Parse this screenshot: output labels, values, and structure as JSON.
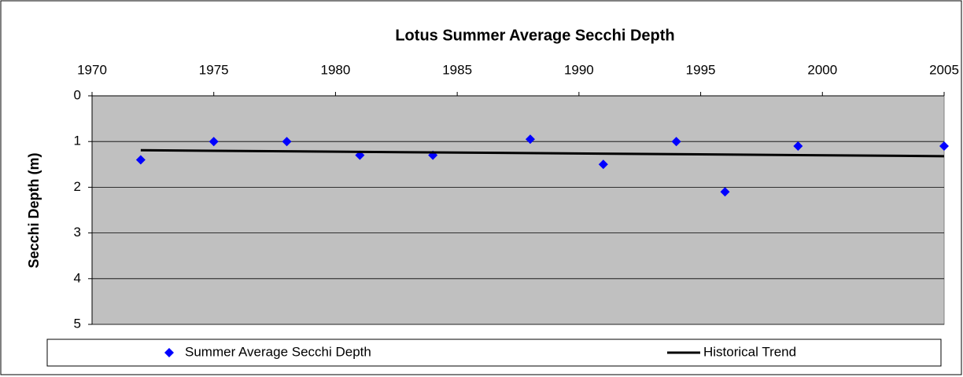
{
  "chart_data": {
    "type": "scatter",
    "title": "Lotus Summer Average Secchi Depth",
    "y_label": "Secchi Depth (m)",
    "xlim": [
      1970,
      2005
    ],
    "xticks": [
      1970,
      1975,
      1980,
      1985,
      1990,
      1995,
      2000,
      2005
    ],
    "x_axis_position": "top",
    "ylim": [
      0,
      5
    ],
    "yticks": [
      0,
      1,
      2,
      3,
      4,
      5
    ],
    "y_reversed": true,
    "grid": true,
    "legend": "bottom",
    "series": [
      {
        "name": "Summer Average Secchi Depth",
        "type": "scatter",
        "color": "#0000ff",
        "x": [
          1972,
          1975,
          1978,
          1981,
          1984,
          1988,
          1991,
          1994,
          1996,
          1999,
          2005
        ],
        "values": [
          1.4,
          1.0,
          1.0,
          1.3,
          1.3,
          0.95,
          1.5,
          1.0,
          2.1,
          1.1,
          1.1
        ]
      },
      {
        "name": "Historical Trend",
        "type": "line",
        "color": "#000000",
        "x": [
          1972,
          2005
        ],
        "values": [
          1.19,
          1.32
        ]
      }
    ]
  }
}
